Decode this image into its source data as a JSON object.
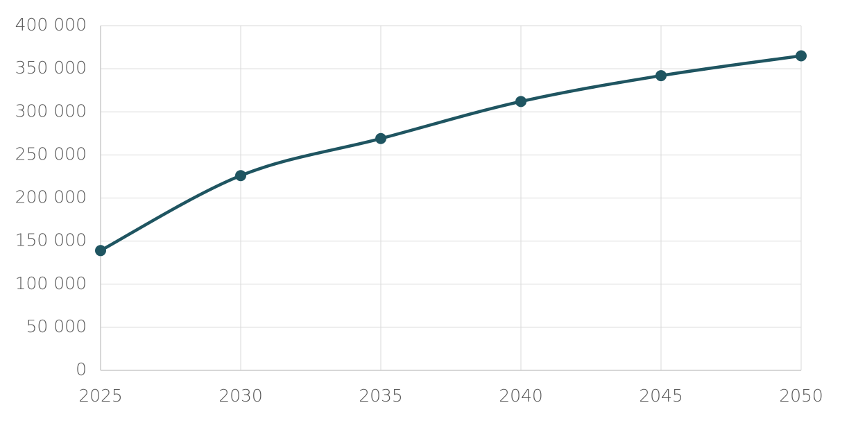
{
  "chart_data": {
    "type": "line",
    "x": [
      2025,
      2030,
      2035,
      2040,
      2045,
      2050
    ],
    "values": [
      139000,
      226000,
      269000,
      312000,
      342000,
      365000
    ],
    "color": "#1f5561",
    "xlim": [
      2025,
      2050
    ],
    "xticks": [
      2025,
      2030,
      2035,
      2040,
      2045,
      2050
    ],
    "ylim": [
      0,
      400000
    ],
    "yticks": [
      0,
      {
        "value": 50000,
        "label": "50 000"
      },
      {
        "value": 100000,
        "label": "100 000"
      },
      {
        "value": 150000,
        "label": "150 000"
      },
      {
        "value": 200000,
        "label": "200 000"
      },
      {
        "value": 250000,
        "label": "250 000"
      },
      {
        "value": 300000,
        "label": "300 000"
      },
      {
        "value": 350000,
        "label": "350 000"
      },
      {
        "value": 400000,
        "label": "400 000"
      }
    ],
    "grid": true,
    "smooth": true,
    "markers": true
  }
}
